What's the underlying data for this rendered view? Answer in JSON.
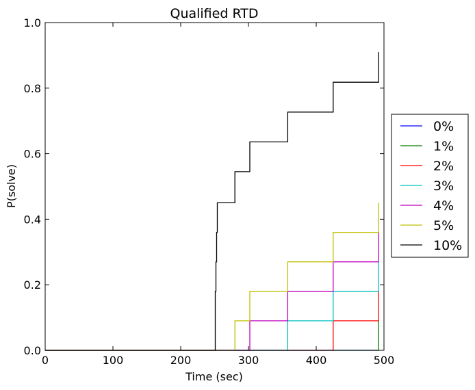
{
  "chart_data": {
    "type": "line",
    "step": true,
    "title": "Qualified RTD",
    "xlabel": "Time (sec)",
    "ylabel": "P(solve)",
    "xlim": [
      0,
      500
    ],
    "ylim": [
      0,
      1.0
    ],
    "xticks": [
      0,
      100,
      200,
      300,
      400,
      500
    ],
    "xtick_labels": [
      "0",
      "100",
      "200",
      "300",
      "400",
      "500"
    ],
    "yticks": [
      0,
      0.2,
      0.4,
      0.6,
      0.8,
      1.0
    ],
    "ytick_labels": [
      "0.0",
      "0.2",
      "0.4",
      "0.6",
      "0.8",
      "1.0"
    ],
    "grid": false,
    "legend_position": "outside-right",
    "series": [
      {
        "name": "0%",
        "color": "#0000ff",
        "x": [
          0,
          492
        ],
        "y": [
          0,
          0
        ]
      },
      {
        "name": "1%",
        "color": "#008000",
        "x": [
          0,
          492,
          492
        ],
        "y": [
          0,
          0,
          0.09
        ]
      },
      {
        "name": "2%",
        "color": "#ff0000",
        "x": [
          0,
          425,
          425,
          492,
          492
        ],
        "y": [
          0,
          0,
          0.09,
          0.09,
          0.18
        ]
      },
      {
        "name": "3%",
        "color": "#00bfbf",
        "x": [
          0,
          358,
          358,
          425,
          425,
          492,
          492
        ],
        "y": [
          0,
          0,
          0.09,
          0.09,
          0.18,
          0.18,
          0.27
        ]
      },
      {
        "name": "4%",
        "color": "#bf00bf",
        "x": [
          0,
          302,
          302,
          358,
          358,
          425,
          425,
          492,
          492
        ],
        "y": [
          0,
          0,
          0.09,
          0.09,
          0.18,
          0.18,
          0.27,
          0.27,
          0.36
        ]
      },
      {
        "name": "5%",
        "color": "#bfbf00",
        "x": [
          0,
          280,
          280,
          302,
          302,
          358,
          358,
          425,
          425,
          492,
          492
        ],
        "y": [
          0,
          0,
          0.09,
          0.09,
          0.18,
          0.18,
          0.27,
          0.27,
          0.36,
          0.36,
          0.45
        ]
      },
      {
        "name": "10%",
        "color": "#000000",
        "x": [
          0,
          251,
          251,
          252,
          252,
          253,
          253,
          254,
          254,
          280,
          280,
          302,
          302,
          358,
          358,
          425,
          425,
          492,
          492
        ],
        "y": [
          0,
          0,
          0.18,
          0.18,
          0.27,
          0.27,
          0.36,
          0.36,
          0.45,
          0.45,
          0.545,
          0.545,
          0.636,
          0.636,
          0.727,
          0.727,
          0.818,
          0.818,
          0.91
        ]
      }
    ]
  }
}
